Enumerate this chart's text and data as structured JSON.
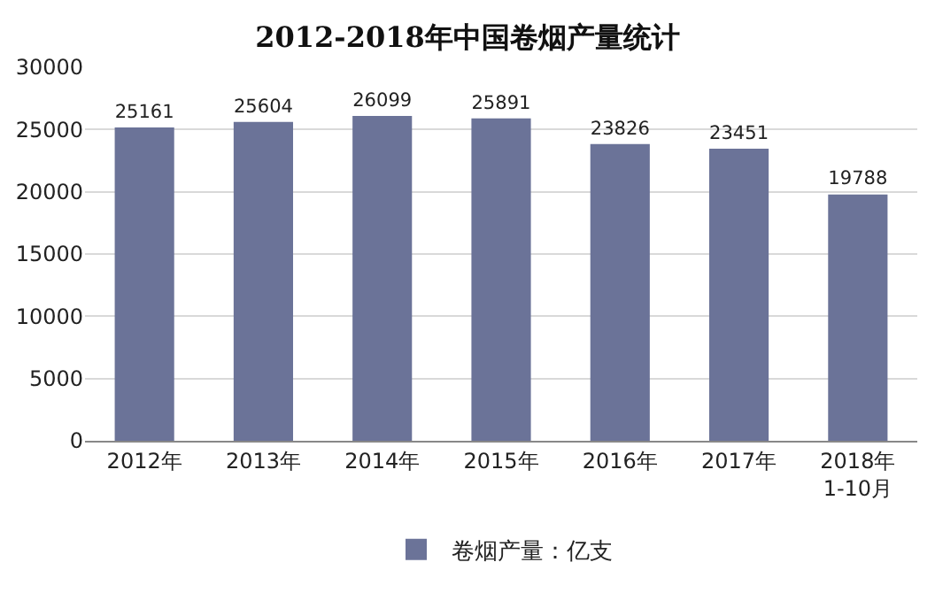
{
  "chart_data": {
    "type": "bar",
    "title": "2012-2018年中国卷烟产量统计",
    "categories": [
      "2012年",
      "2013年",
      "2014年",
      "2015年",
      "2016年",
      "2017年",
      "2018年\n1-10月"
    ],
    "series": [
      {
        "name": "卷烟产量：亿支",
        "color": "#6b7398",
        "values": [
          25161,
          25604,
          26099,
          25891,
          23826,
          23451,
          19788
        ]
      }
    ],
    "ylim": [
      0,
      30000
    ],
    "yticks": [
      0,
      5000,
      10000,
      15000,
      20000,
      25000,
      30000
    ],
    "grid": "y",
    "legend": "bottom",
    "data_labels": true
  }
}
